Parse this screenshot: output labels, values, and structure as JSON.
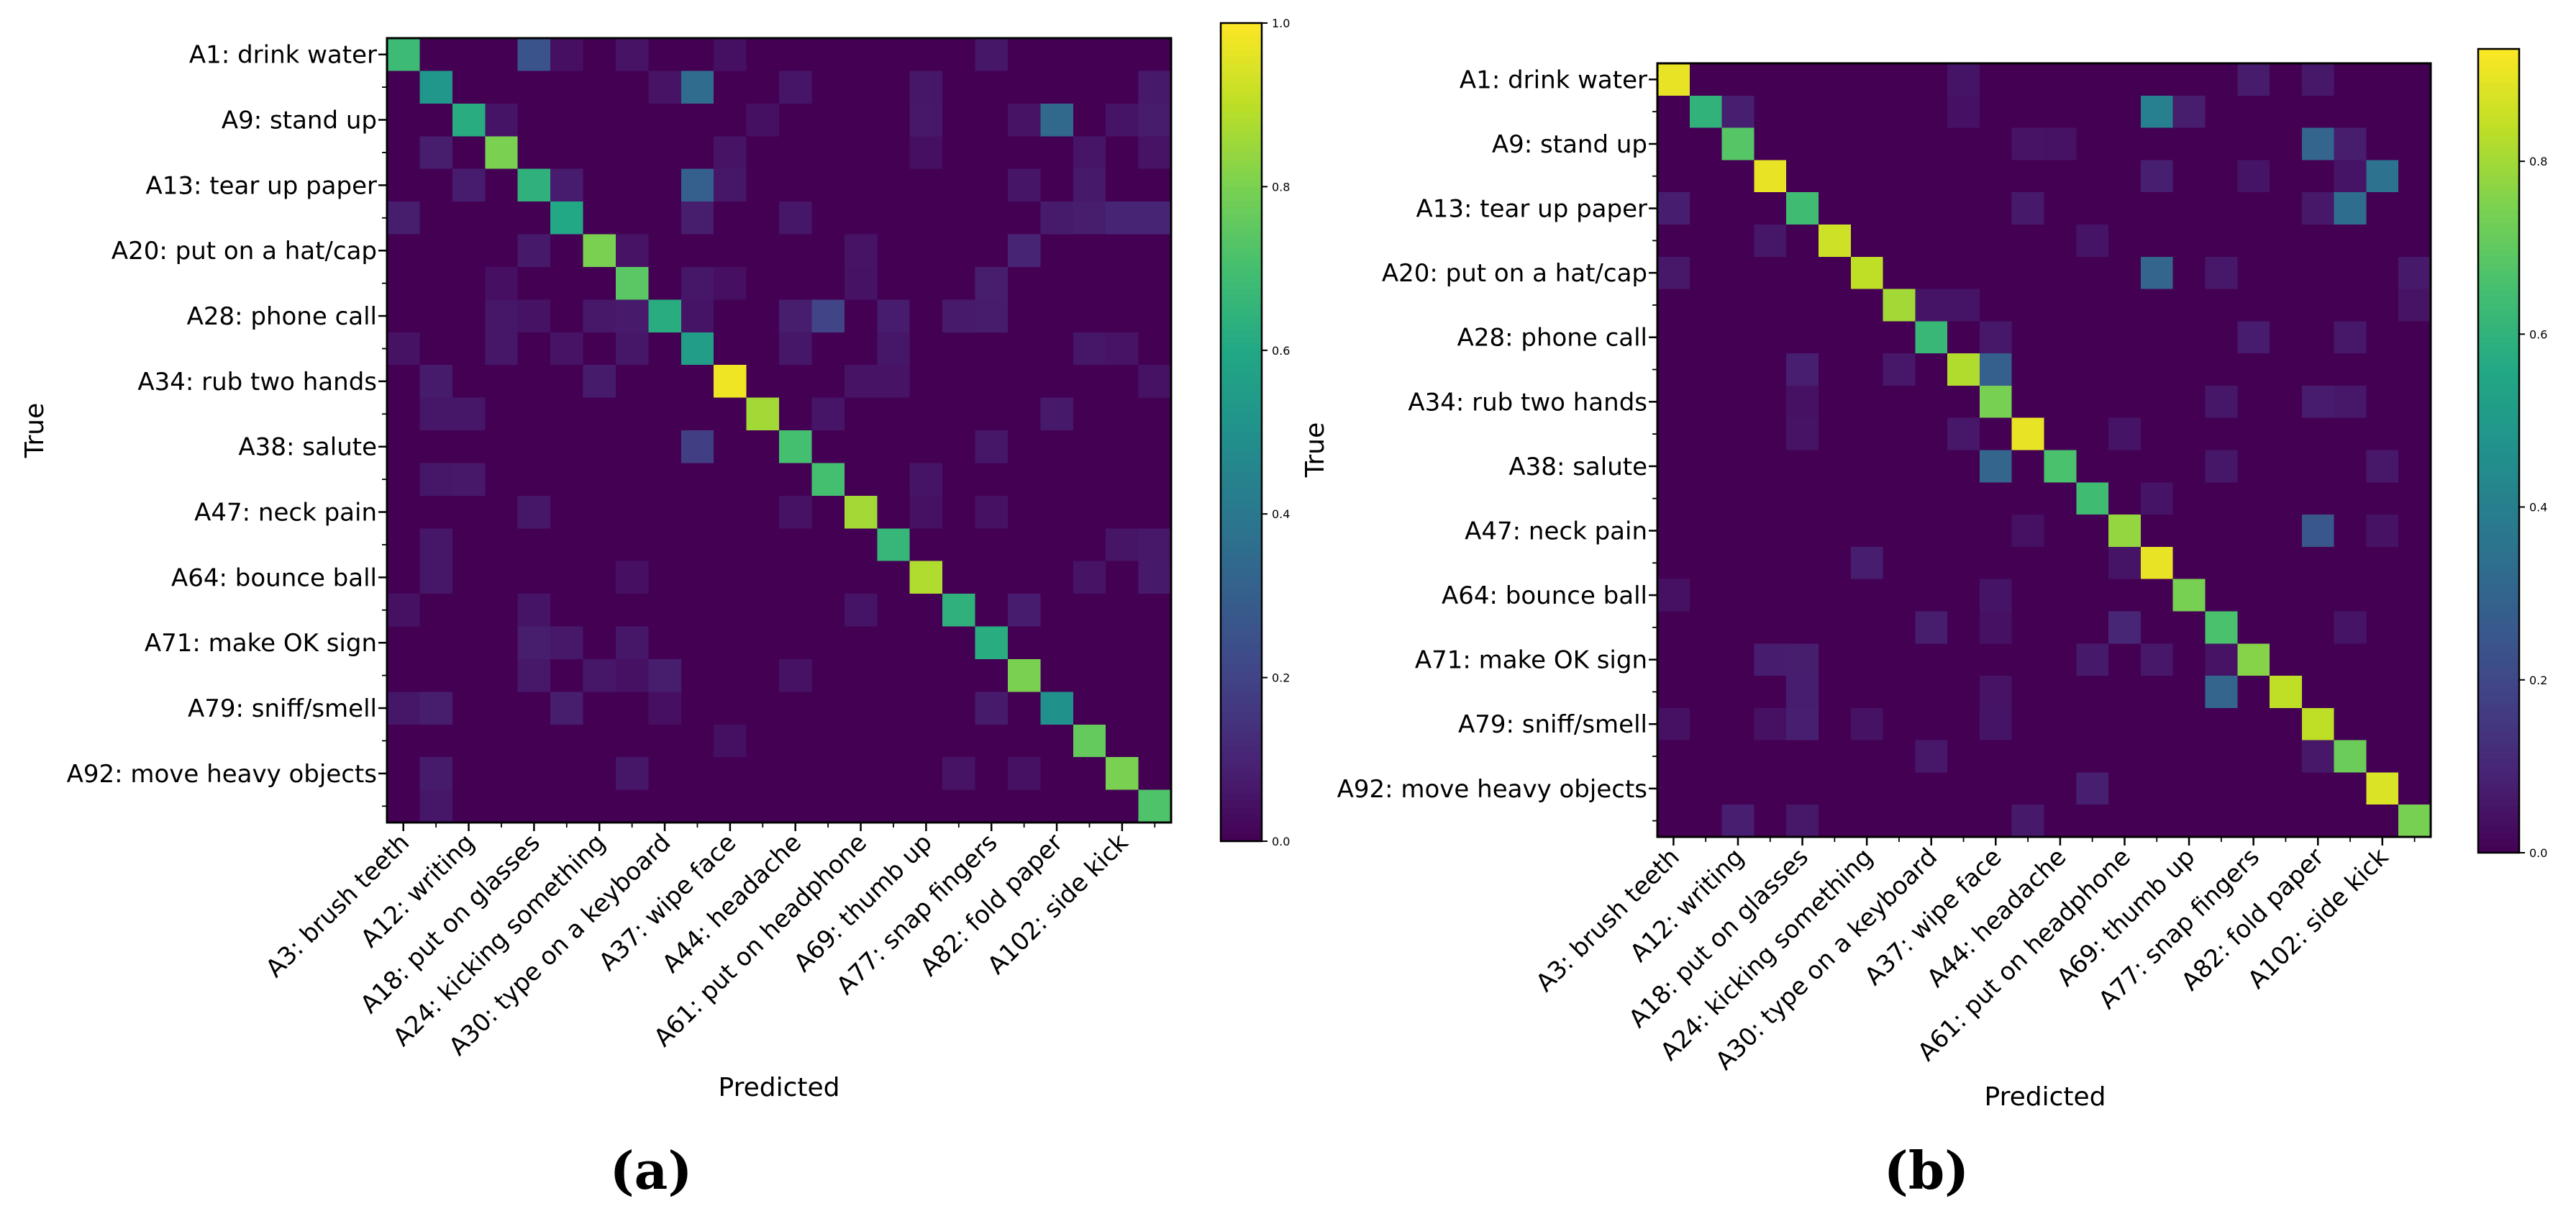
{
  "chart_data": [
    {
      "type": "heatmap",
      "panel": "(a)",
      "xlabel": "Predicted",
      "ylabel": "True",
      "row_tick_labels": [
        "A1: drink water",
        "A9: stand up",
        "A13: tear up paper",
        "A20: put on a hat/cap",
        "A28: phone call",
        "A34: rub two hands",
        "A38: salute",
        "A47: neck pain",
        "A64: bounce ball",
        "A71: make OK sign",
        "A79: sniff/smell",
        "A92: move heavy objects"
      ],
      "col_tick_labels": [
        "A3: brush teeth",
        "A12: writing",
        "A18: put on glasses",
        "A24: kicking something",
        "A30: type on a keyboard",
        "A37: wipe face",
        "A44: headache",
        "A61: put on headphone",
        "A69: thumb up",
        "A77: snap fingers",
        "A82: fold paper",
        "A102: side kick"
      ],
      "n_classes": 24,
      "colorbar": {
        "range": [
          0.0,
          1.0
        ],
        "ticks": [
          "0.0",
          "0.2",
          "0.4",
          "0.6",
          "0.8",
          "1.0"
        ]
      },
      "diagonal": [
        0.68,
        0.52,
        0.62,
        0.8,
        0.64,
        0.6,
        0.8,
        0.74,
        0.62,
        0.55,
        0.98,
        0.86,
        0.7,
        0.7,
        0.86,
        0.66,
        0.88,
        0.64,
        0.62,
        0.8,
        0.5,
        0.76,
        0.8,
        0.72
      ],
      "off_diagonal": [
        [
          0,
          4,
          0.26
        ],
        [
          0,
          5,
          0.04
        ],
        [
          0,
          18,
          0.06
        ],
        [
          1,
          8,
          0.05
        ],
        [
          1,
          9,
          0.35
        ],
        [
          1,
          16,
          0.06
        ],
        [
          2,
          20,
          0.34
        ],
        [
          3,
          1,
          0.08
        ],
        [
          3,
          10,
          0.05
        ],
        [
          3,
          23,
          0.05
        ],
        [
          4,
          9,
          0.3
        ],
        [
          4,
          10,
          0.06
        ],
        [
          5,
          0,
          0.08
        ],
        [
          5,
          9,
          0.08
        ],
        [
          5,
          12,
          0.06
        ],
        [
          5,
          21,
          0.08
        ],
        [
          5,
          22,
          0.1
        ],
        [
          5,
          23,
          0.1
        ],
        [
          6,
          14,
          0.05
        ],
        [
          6,
          7,
          0.05
        ],
        [
          6,
          19,
          0.1
        ],
        [
          7,
          9,
          0.06
        ],
        [
          7,
          10,
          0.04
        ],
        [
          7,
          18,
          0.08
        ],
        [
          8,
          3,
          0.06
        ],
        [
          8,
          13,
          0.2
        ],
        [
          9,
          3,
          0.06
        ],
        [
          9,
          5,
          0.05
        ],
        [
          9,
          7,
          0.06
        ],
        [
          9,
          12,
          0.06
        ],
        [
          9,
          15,
          0.06
        ],
        [
          9,
          21,
          0.06
        ],
        [
          10,
          14,
          0.05
        ],
        [
          10,
          15,
          0.05
        ],
        [
          11,
          1,
          0.06
        ],
        [
          11,
          2,
          0.06
        ],
        [
          12,
          9,
          0.18
        ],
        [
          12,
          18,
          0.06
        ],
        [
          13,
          1,
          0.06
        ],
        [
          14,
          4,
          0.06
        ],
        [
          15,
          1,
          0.06
        ],
        [
          16,
          1,
          0.06
        ],
        [
          18,
          7,
          0.06
        ],
        [
          19,
          6,
          0.06
        ],
        [
          20,
          0,
          0.06
        ],
        [
          20,
          1,
          0.08
        ],
        [
          20,
          5,
          0.08
        ],
        [
          22,
          7,
          0.06
        ],
        [
          23,
          1,
          0.06
        ]
      ]
    },
    {
      "type": "heatmap",
      "panel": "(b)",
      "xlabel": "Predicted",
      "ylabel": "True",
      "row_tick_labels": [
        "A1: drink water",
        "A9: stand up",
        "A13: tear up paper",
        "A20: put on a hat/cap",
        "A28: phone call",
        "A34: rub two hands",
        "A38: salute",
        "A47: neck pain",
        "A64: bounce ball",
        "A71: make OK sign",
        "A79: sniff/smell",
        "A92: move heavy objects"
      ],
      "col_tick_labels": [
        "A3: brush teeth",
        "A12: writing",
        "A18: put on glasses",
        "A24: kicking something",
        "A30: type on a keyboard",
        "A37: wipe face",
        "A44: headache",
        "A61: put on headphone",
        "A69: thumb up",
        "A77: snap fingers",
        "A82: fold paper",
        "A102: side kick"
      ],
      "n_classes": 24,
      "colorbar": {
        "range": [
          0.0,
          0.93
        ],
        "ticks": [
          "0.0",
          "0.2",
          "0.4",
          "0.6",
          "0.8"
        ]
      },
      "diagonal": [
        0.9,
        0.6,
        0.68,
        0.9,
        0.64,
        0.86,
        0.84,
        0.8,
        0.62,
        0.82,
        0.74,
        0.9,
        0.66,
        0.64,
        0.78,
        0.9,
        0.74,
        0.66,
        0.76,
        0.84,
        0.84,
        0.72,
        0.88,
        0.74
      ],
      "off_diagonal": [
        [
          0,
          9,
          0.05
        ],
        [
          0,
          20,
          0.06
        ],
        [
          1,
          15,
          0.4
        ],
        [
          2,
          20,
          0.3
        ],
        [
          3,
          22,
          0.35
        ],
        [
          4,
          21,
          0.33
        ],
        [
          5,
          13,
          0.05
        ],
        [
          6,
          15,
          0.3
        ],
        [
          7,
          9,
          0.05
        ],
        [
          8,
          21,
          0.06
        ],
        [
          9,
          10,
          0.28
        ],
        [
          10,
          21,
          0.06
        ],
        [
          11,
          14,
          0.05
        ],
        [
          12,
          10,
          0.3
        ],
        [
          12,
          22,
          0.06
        ],
        [
          13,
          15,
          0.05
        ],
        [
          14,
          20,
          0.25
        ],
        [
          15,
          14,
          0.05
        ],
        [
          16,
          10,
          0.05
        ],
        [
          17,
          14,
          0.1
        ],
        [
          18,
          15,
          0.06
        ],
        [
          19,
          17,
          0.3
        ],
        [
          20,
          10,
          0.05
        ],
        [
          21,
          20,
          0.06
        ],
        [
          22,
          13,
          0.08
        ],
        [
          23,
          4,
          0.06
        ]
      ]
    }
  ],
  "captions": {
    "a": "(a)",
    "b": "(b)"
  }
}
